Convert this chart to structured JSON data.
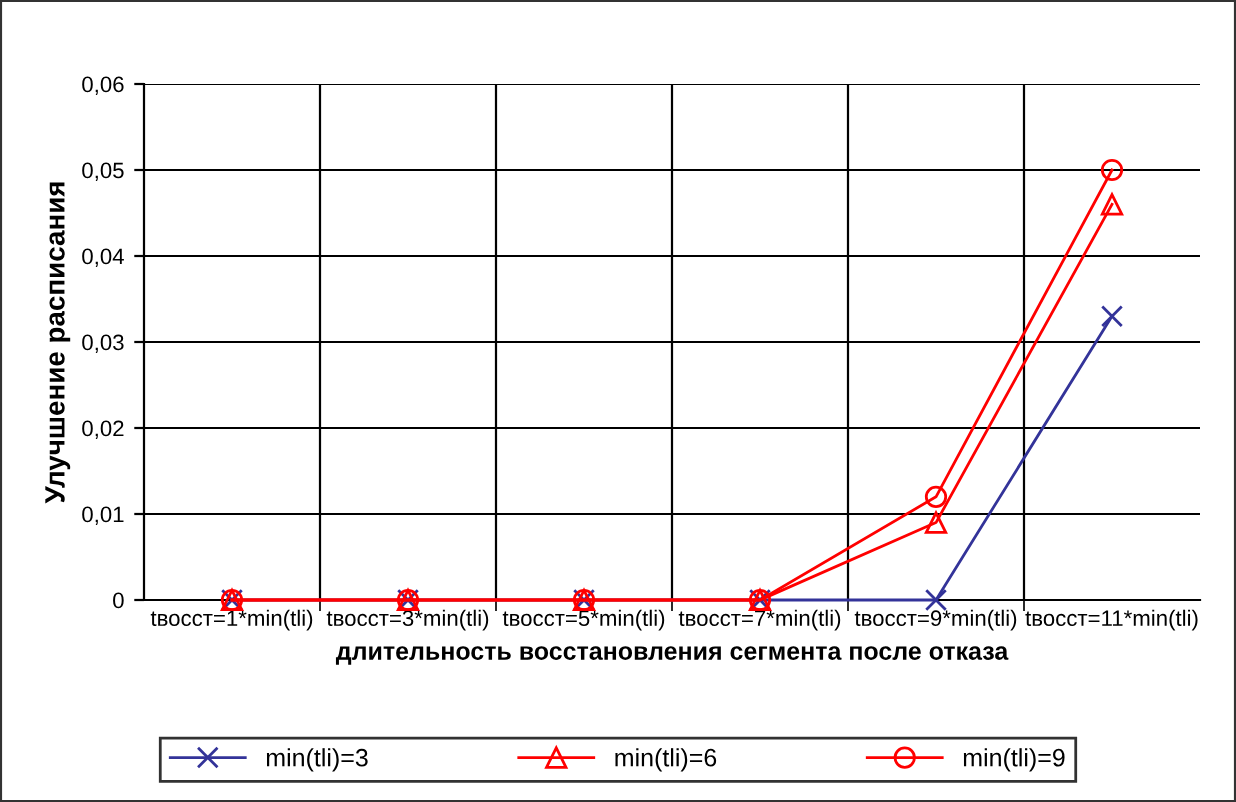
{
  "chart_data": {
    "type": "line",
    "xlabel": "длительность восстановления сегмента после отказа",
    "ylabel": "Улучшение расписания",
    "categories": [
      "tвосст=1*min(tli)",
      "tвосст=3*min(tli)",
      "tвосст=5*min(tli)",
      "tвосст=7*min(tli)",
      "tвосст=9*min(tli)",
      "tвосст=11*min(tli)"
    ],
    "series": [
      {
        "name": "min(tli)=3",
        "color": "#333399",
        "marker": "cross",
        "values": [
          0,
          0,
          0,
          0,
          0,
          0.033
        ]
      },
      {
        "name": "min(tli)=6",
        "color": "#ff0000",
        "marker": "triangle",
        "values": [
          0,
          0,
          0,
          0,
          0.009,
          0.046
        ]
      },
      {
        "name": "min(tli)=9",
        "color": "#ff0000",
        "marker": "circle",
        "values": [
          0,
          0,
          0,
          0,
          0.012,
          0.05
        ]
      }
    ],
    "ylim": [
      0,
      0.06
    ],
    "yticks": [
      {
        "value": 0,
        "label": "0"
      },
      {
        "value": 0.01,
        "label": "0,01"
      },
      {
        "value": 0.02,
        "label": "0,02"
      },
      {
        "value": 0.03,
        "label": "0,03"
      },
      {
        "value": 0.04,
        "label": "0,04"
      },
      {
        "value": 0.05,
        "label": "0,05"
      },
      {
        "value": 0.06,
        "label": "0,06"
      }
    ],
    "grid": true,
    "legend": "bottom",
    "line_style": "solid"
  }
}
